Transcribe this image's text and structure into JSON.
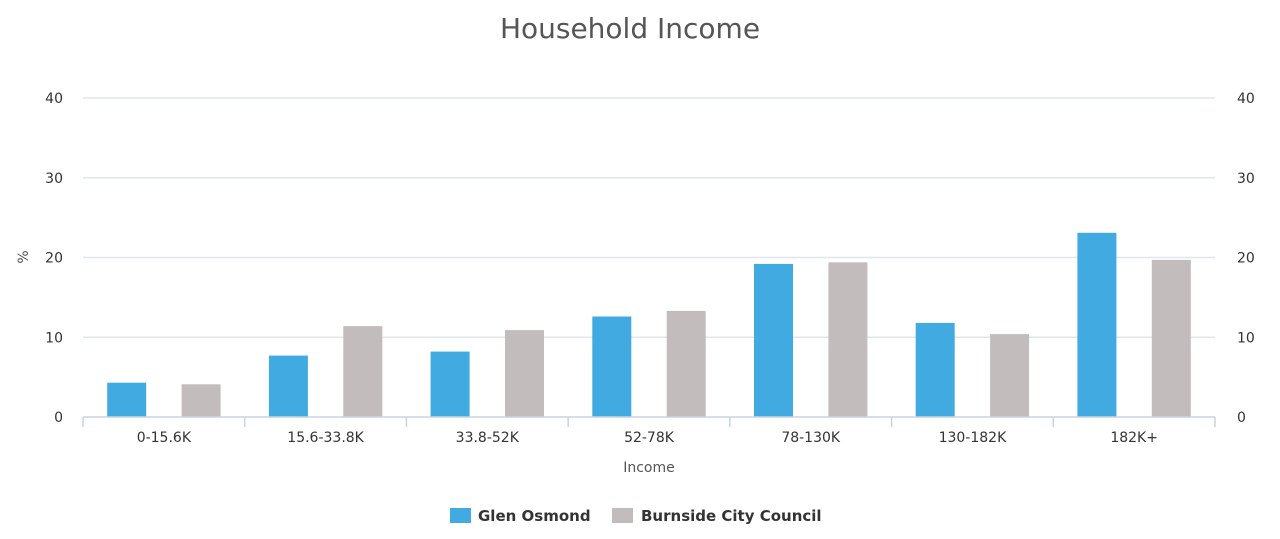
{
  "chart_data": {
    "type": "bar",
    "title": "Household Income",
    "xlabel": "Income",
    "ylabel": "%",
    "ylim": [
      0,
      40
    ],
    "yticks": [
      "0",
      "10",
      "20",
      "30",
      "40"
    ],
    "y2ticks": [
      "0",
      "10",
      "20",
      "30",
      "40"
    ],
    "categories": [
      "0-15.6K",
      "15.6-33.8K",
      "33.8-52K",
      "52-78K",
      "78-130K",
      "130-182K",
      "182K+"
    ],
    "series": [
      {
        "name": "Glen Osmond",
        "color": "#41aae1",
        "values": [
          4.3,
          7.7,
          8.2,
          12.6,
          19.2,
          11.8,
          23.1
        ]
      },
      {
        "name": "Burnside City Council",
        "color": "#c2bcbc",
        "values": [
          4.1,
          11.4,
          10.9,
          13.3,
          19.4,
          10.4,
          19.7
        ]
      }
    ],
    "grid": true,
    "legend_position": "bottom-center"
  }
}
